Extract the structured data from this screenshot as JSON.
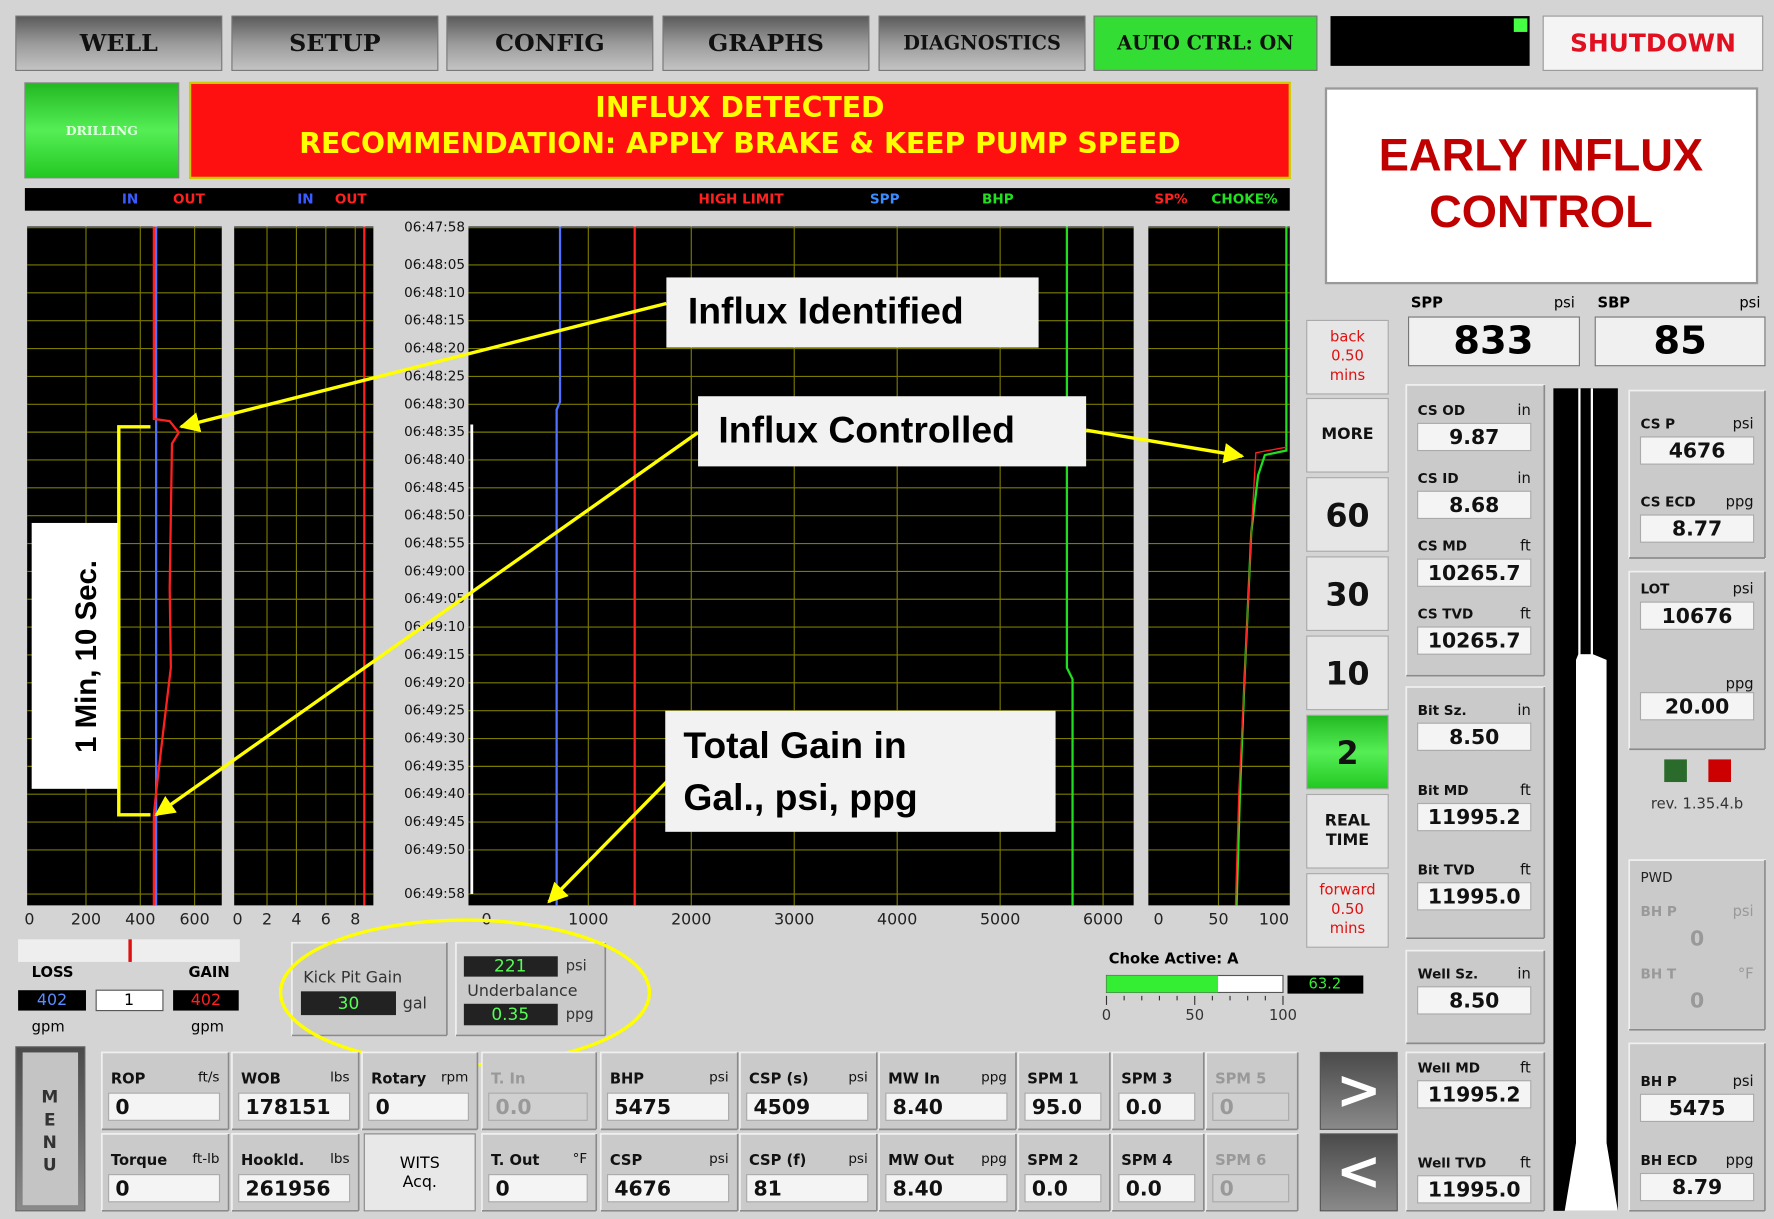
{
  "nav": [
    "WELL",
    "SETUP",
    "CONFIG",
    "GRAPHS",
    "DIAGNOSTICS",
    "AUTO CTRL: ON"
  ],
  "shutdown": "SHUTDOWN",
  "mode": "DRILLING",
  "alarm": [
    "INFLUX DETECTED",
    "RECOMMENDATION: APPLY BRAKE & KEEP PUMP SPEED"
  ],
  "title": [
    "EARLY INFLUX",
    "CONTROL"
  ],
  "legend": [
    {
      "text": "IN",
      "color": "#3a5bff"
    },
    {
      "text": "OUT",
      "color": "#ff2020"
    },
    {
      "text": "IN",
      "color": "#3a5bff"
    },
    {
      "text": "OUT",
      "color": "#ff2020"
    },
    {
      "text": "HIGH LIMIT",
      "color": "#ff2020"
    },
    {
      "text": "SPP",
      "color": "#3a8bff"
    },
    {
      "text": "BHP",
      "color": "#20e020"
    },
    {
      "text": "SP%",
      "color": "#ff2020"
    },
    {
      "text": "CHOKE%",
      "color": "#20e020"
    }
  ],
  "times": [
    "06:47:58",
    "06:48:05",
    "06:48:10",
    "06:48:15",
    "06:48:20",
    "06:48:25",
    "06:48:30",
    "06:48:35",
    "06:48:40",
    "06:48:45",
    "06:48:50",
    "06:48:55",
    "06:49:00",
    "06:49:05",
    "06:49:10",
    "06:49:15",
    "06:49:20",
    "06:49:25",
    "06:49:30",
    "06:49:35",
    "06:49:40",
    "06:49:45",
    "06:49:50",
    "06:49:58"
  ],
  "axis_labels": [
    [
      0,
      200,
      400,
      600
    ],
    [
      0,
      2,
      4,
      6,
      8
    ],
    [
      0,
      1000,
      2000,
      3000,
      4000,
      5000,
      6000
    ],
    [
      0,
      50,
      100
    ]
  ],
  "annotations": {
    "identified": "Influx Identified",
    "controlled": "Influx Controlled",
    "gain": [
      "Total Gain in",
      "Gal., psi, ppg"
    ],
    "duration": "1 Min, 10 Sec."
  },
  "time_buttons": [
    [
      "back",
      "0.50",
      "mins"
    ],
    [
      "MORE"
    ],
    [
      "60"
    ],
    [
      "30"
    ],
    [
      "10"
    ],
    [
      "2"
    ],
    [
      "REAL",
      "TIME"
    ],
    [
      "forward",
      "0.50",
      "mins"
    ]
  ],
  "loss_gain": {
    "loss": "LOSS",
    "gain": "GAIN",
    "values": [
      "402",
      "1",
      "402"
    ],
    "units": [
      "gpm",
      "gpm"
    ]
  },
  "kick": {
    "label": "Kick Pit Gain",
    "value": "30",
    "unit": "gal"
  },
  "underbalance": {
    "label": "Underbalance",
    "psi": "221",
    "psi_unit": "psi",
    "ppg": "0.35",
    "ppg_unit": "ppg"
  },
  "choke": {
    "label": "Choke Active:  A",
    "value": 63.2,
    "scale": [
      0,
      50,
      100
    ]
  },
  "spp": {
    "label": "SPP",
    "unit": "psi",
    "value": "833"
  },
  "sbp": {
    "label": "SBP",
    "unit": "psi",
    "value": "85"
  },
  "side_fields": [
    {
      "label": "CS OD",
      "unit": "in",
      "value": "9.87"
    },
    {
      "label": "CS ID",
      "unit": "in",
      "value": "8.68"
    },
    {
      "label": "CS MD",
      "unit": "ft",
      "value": "10265.7"
    },
    {
      "label": "CS TVD",
      "unit": "ft",
      "value": "10265.7"
    },
    {
      "label": "Bit Sz.",
      "unit": "in",
      "value": "8.50"
    },
    {
      "label": "Bit MD",
      "unit": "ft",
      "value": "11995.2"
    },
    {
      "label": "Bit TVD",
      "unit": "ft",
      "value": "11995.0"
    },
    {
      "label": "Well Sz.",
      "unit": "in",
      "value": "8.50"
    },
    {
      "label": "Well MD",
      "unit": "ft",
      "value": "11995.2"
    },
    {
      "label": "Well TVD",
      "unit": "ft",
      "value": "11995.0"
    },
    {
      "label": "CS P",
      "unit": "psi",
      "value": "4676"
    },
    {
      "label": "CS ECD",
      "unit": "ppg",
      "value": "8.77"
    },
    {
      "label": "LOT",
      "unit": "psi",
      "value": "10676"
    },
    {
      "unit": "ppg",
      "value": "20.00"
    },
    {
      "label": "BH P",
      "unit": "psi",
      "value": "0"
    },
    {
      "label": "BH T",
      "unit": "°F",
      "value": "0"
    },
    {
      "label": "BH P",
      "unit": "psi",
      "value": "5475"
    },
    {
      "label": "BH ECD",
      "unit": "ppg",
      "value": "8.79"
    }
  ],
  "rev": "rev. 1.35.4.b",
  "pwd": "PWD",
  "menu": [
    "M",
    "E",
    "N",
    "U"
  ],
  "bottom_fields": [
    {
      "label": "ROP",
      "unit": "ft/s",
      "value": "0"
    },
    {
      "label": "WOB",
      "unit": "lbs",
      "value": "178151"
    },
    {
      "label": "Rotary",
      "unit": "rpm",
      "value": "0"
    },
    {
      "label": "T. In",
      "value": "0.0"
    },
    {
      "label": "BHP",
      "unit": "psi",
      "value": "5475"
    },
    {
      "label": "CSP (s)",
      "unit": "psi",
      "value": "4509"
    },
    {
      "label": "MW In",
      "unit": "ppg",
      "value": "8.40"
    },
    {
      "label": "SPM 1",
      "value": "95.0"
    },
    {
      "label": "SPM 3",
      "value": "0.0"
    },
    {
      "label": "SPM 5",
      "value": "0"
    },
    {
      "label": "Torque",
      "unit": "ft-lb",
      "value": "0"
    },
    {
      "label": "Hookld.",
      "unit": "lbs",
      "value": "261956"
    },
    {
      "label": "T. Out",
      "unit": "°F",
      "value": "0"
    },
    {
      "label": "CSP",
      "unit": "psi",
      "value": "4676"
    },
    {
      "label": "CSP (f)",
      "unit": "psi",
      "value": "81"
    },
    {
      "label": "MW Out",
      "unit": "ppg",
      "value": "8.40"
    },
    {
      "label": "SPM 2",
      "value": "0.0"
    },
    {
      "label": "SPM 4",
      "value": "0.0"
    },
    {
      "label": "SPM 6",
      "value": "0"
    }
  ],
  "wits": [
    "WITS",
    "Acq."
  ],
  "arrows": [
    ">",
    "<"
  ]
}
